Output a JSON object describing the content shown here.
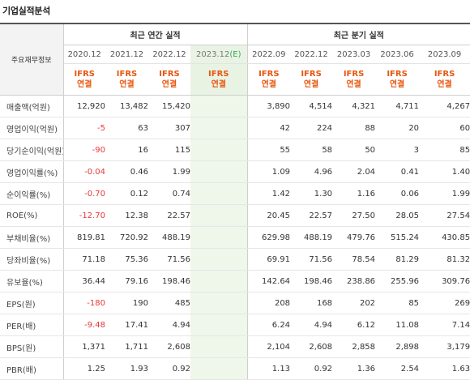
{
  "section_title": "기업실적분석",
  "stub_header": "주요재무정보",
  "annual_group": "최근 연간 실적",
  "quarter_group": "최근 분기 실적",
  "ifrs_line1": "IFRS",
  "ifrs_line2": "연결",
  "periods": {
    "annual": [
      "2020.12",
      "2021.12",
      "2022.12",
      "2023.12"
    ],
    "annual_est_mark": "(E)",
    "quarter": [
      "2022.09",
      "2022.12",
      "2023.03",
      "2023.06",
      "2023.09"
    ]
  },
  "colors": {
    "ifrs": "#e8560f",
    "negative": "#e8363b",
    "estimate_background": "#eef7ea"
  },
  "rows": [
    {
      "label": "매출액(억원)",
      "annual": [
        "12,920",
        "13,482",
        "15,420",
        ""
      ],
      "quarter": [
        "3,890",
        "4,514",
        "4,321",
        "4,711",
        "4,267"
      ]
    },
    {
      "label": "영업이익(억원)",
      "annual": [
        "-5",
        "63",
        "307",
        ""
      ],
      "quarter": [
        "42",
        "224",
        "88",
        "20",
        "60"
      ]
    },
    {
      "label": "당기순이익(억원)",
      "annual": [
        "-90",
        "16",
        "115",
        ""
      ],
      "quarter": [
        "55",
        "58",
        "50",
        "3",
        "85"
      ]
    },
    {
      "label": "영업이익률(%)",
      "annual": [
        "-0.04",
        "0.46",
        "1.99",
        ""
      ],
      "quarter": [
        "1.09",
        "4.96",
        "2.04",
        "0.41",
        "1.40"
      ]
    },
    {
      "label": "순이익률(%)",
      "annual": [
        "-0.70",
        "0.12",
        "0.74",
        ""
      ],
      "quarter": [
        "1.42",
        "1.30",
        "1.16",
        "0.06",
        "1.99"
      ]
    },
    {
      "label": "ROE(%)",
      "annual": [
        "-12.70",
        "12.38",
        "22.57",
        ""
      ],
      "quarter": [
        "20.45",
        "22.57",
        "27.50",
        "28.05",
        "27.54"
      ]
    },
    {
      "label": "부채비율(%)",
      "annual": [
        "819.81",
        "720.92",
        "488.19",
        ""
      ],
      "quarter": [
        "629.98",
        "488.19",
        "479.76",
        "515.24",
        "430.85"
      ]
    },
    {
      "label": "당좌비율(%)",
      "annual": [
        "71.18",
        "75.36",
        "71.56",
        ""
      ],
      "quarter": [
        "69.91",
        "71.56",
        "78.54",
        "81.29",
        "81.32"
      ]
    },
    {
      "label": "유보율(%)",
      "annual": [
        "36.44",
        "79.16",
        "198.46",
        ""
      ],
      "quarter": [
        "142.64",
        "198.46",
        "238.86",
        "255.96",
        "309.76"
      ]
    },
    {
      "label": "EPS(원)",
      "annual": [
        "-180",
        "190",
        "485",
        ""
      ],
      "quarter": [
        "208",
        "168",
        "202",
        "85",
        "269"
      ]
    },
    {
      "label": "PER(배)",
      "annual": [
        "-9.48",
        "17.41",
        "4.94",
        ""
      ],
      "quarter": [
        "6.24",
        "4.94",
        "6.12",
        "11.08",
        "7.14"
      ]
    },
    {
      "label": "BPS(원)",
      "annual": [
        "1,371",
        "1,711",
        "2,608",
        ""
      ],
      "quarter": [
        "2,104",
        "2,608",
        "2,858",
        "2,898",
        "3,179"
      ]
    },
    {
      "label": "PBR(배)",
      "annual": [
        "1.25",
        "1.93",
        "0.92",
        ""
      ],
      "quarter": [
        "1.13",
        "0.92",
        "1.36",
        "2.54",
        "1.63"
      ]
    }
  ]
}
